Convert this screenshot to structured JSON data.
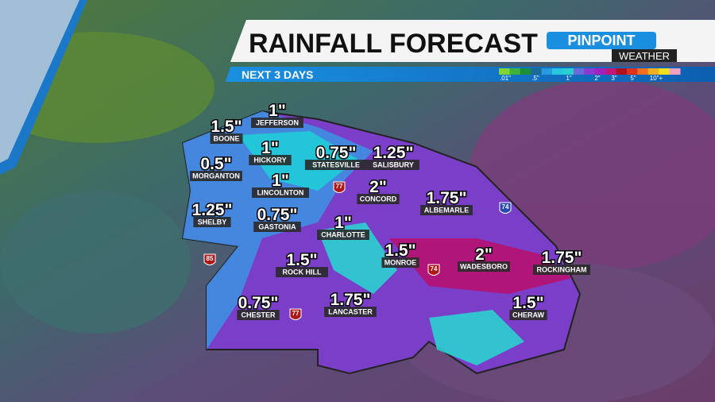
{
  "header": {
    "title": "RAINFALL FORECAST",
    "subtitle": "NEXT 3 DAYS",
    "logo_top": "PINPOINT",
    "logo_bottom": "WEATHER"
  },
  "legend": {
    "labels": [
      ".01\"",
      ".5\"",
      "1\"",
      "2\"",
      "3\"",
      "5\"",
      "10\"+"
    ]
  },
  "cities": [
    {
      "name": "JEFFERSON",
      "amount": "1\""
    },
    {
      "name": "BOONE",
      "amount": "1.5\""
    },
    {
      "name": "HICKORY",
      "amount": "1\""
    },
    {
      "name": "MORGANTON",
      "amount": "0.5\""
    },
    {
      "name": "STATESVILLE",
      "amount": "0.75\""
    },
    {
      "name": "SALISBURY",
      "amount": "1.25\""
    },
    {
      "name": "LINCOLNTON",
      "amount": "1\""
    },
    {
      "name": "CONCORD",
      "amount": "2\""
    },
    {
      "name": "ALBEMARLE",
      "amount": "1.75\""
    },
    {
      "name": "SHELBY",
      "amount": "1.25\""
    },
    {
      "name": "GASTONIA",
      "amount": "0.75\""
    },
    {
      "name": "CHARLOTTE",
      "amount": "1\""
    },
    {
      "name": "MONROE",
      "amount": "1.5\""
    },
    {
      "name": "WADESBORO",
      "amount": "2\""
    },
    {
      "name": "ROCKINGHAM",
      "amount": "1.75\""
    },
    {
      "name": "ROCK HILL",
      "amount": "1.5\""
    },
    {
      "name": "CHESTER",
      "amount": "0.75\""
    },
    {
      "name": "LANCASTER",
      "amount": "1.75\""
    },
    {
      "name": "CHERAW",
      "amount": "1.5\""
    }
  ],
  "highways": [
    "77",
    "85",
    "74",
    "74",
    "77"
  ]
}
